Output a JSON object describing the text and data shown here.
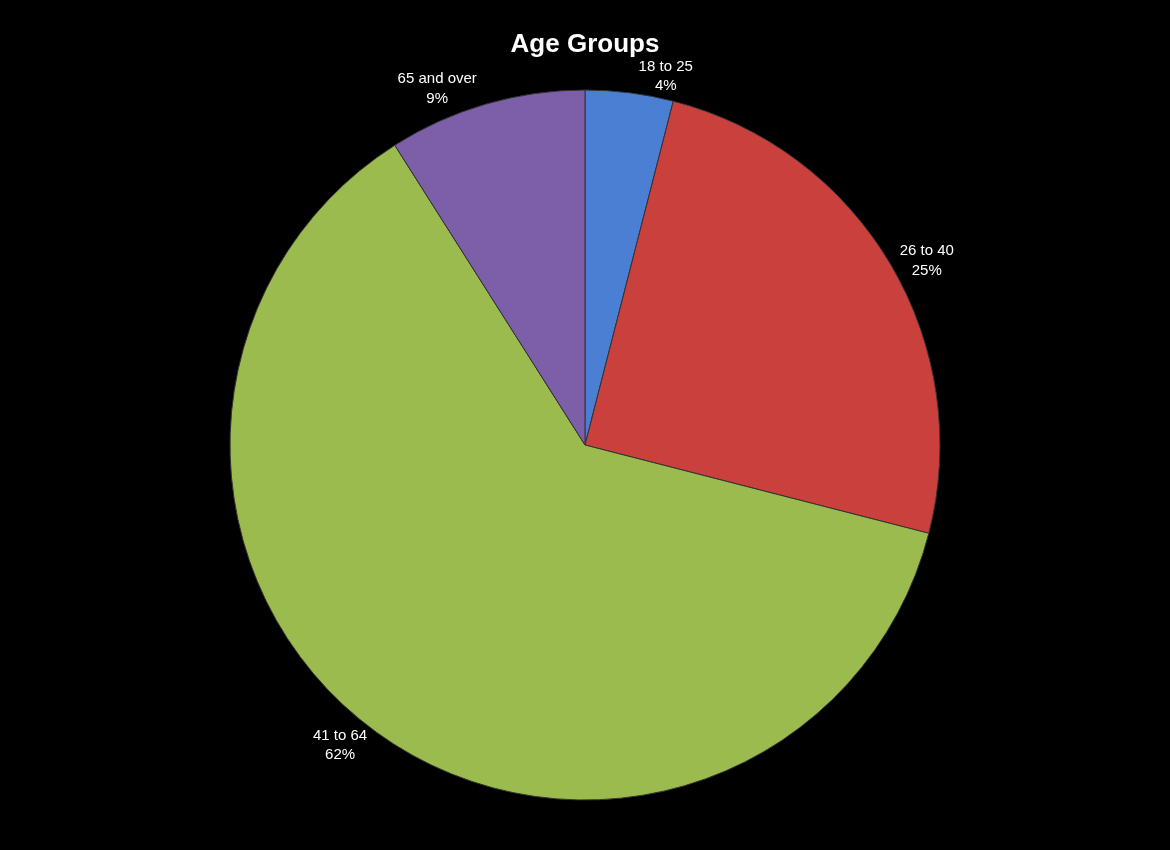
{
  "chart_data": {
    "type": "pie",
    "title": "Age Groups",
    "categories": [
      "18 to 25",
      "26 to 40",
      "41 to 64",
      "65 and over"
    ],
    "values": [
      4,
      25,
      62,
      9
    ],
    "value_labels": [
      "4%",
      "25%",
      "62%",
      "9%"
    ],
    "colors": [
      "#4a7fd4",
      "#c9403d",
      "#9bbb4f",
      "#7d5ea8"
    ],
    "legend": false
  }
}
